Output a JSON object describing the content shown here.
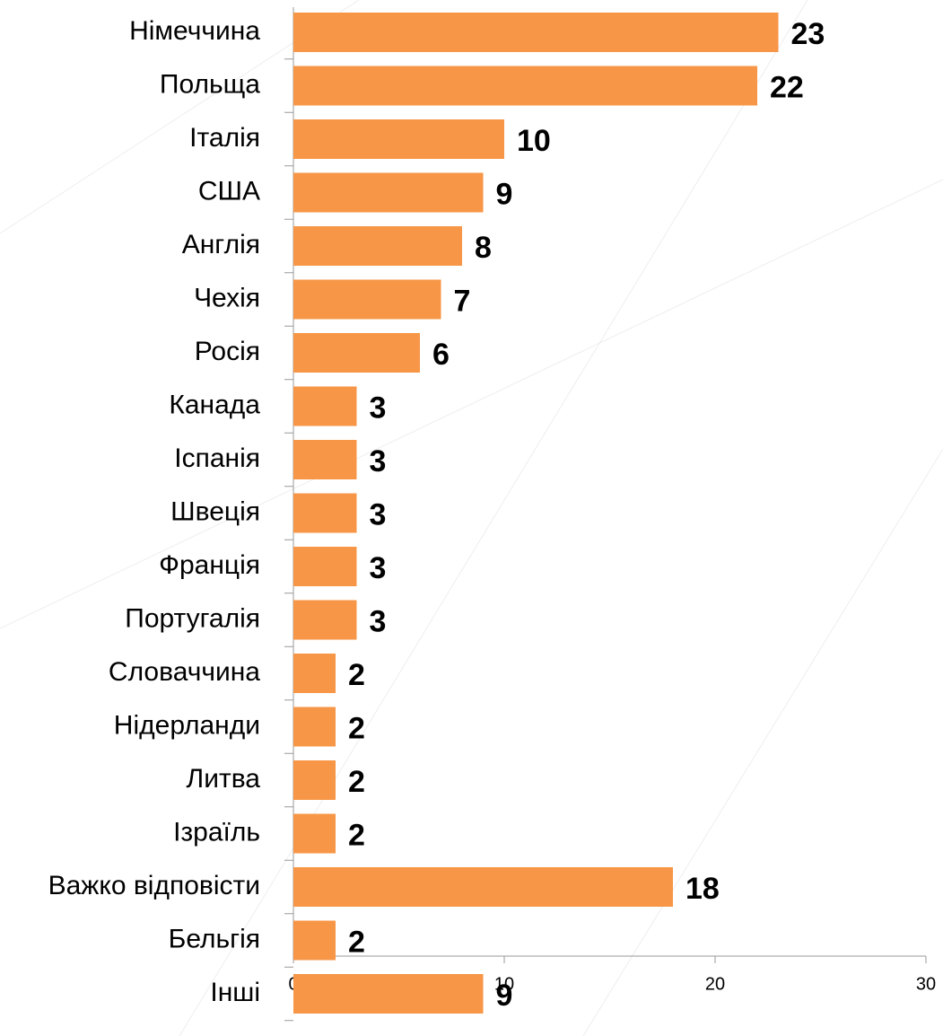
{
  "chart_data": {
    "type": "barh",
    "categories": [
      "Німеччина",
      "Польща",
      "Італія",
      "США",
      "Англія",
      "Чехія",
      "Росія",
      "Канада",
      "Іспанія",
      "Швеція",
      "Франція",
      "Португалія",
      "Словаччина",
      "Нідерланди",
      "Литва",
      "Ізраїль",
      "Важко відповісти",
      "Бельгія",
      "Інші"
    ],
    "values": [
      23,
      22,
      10,
      9,
      8,
      7,
      6,
      3,
      3,
      3,
      3,
      3,
      2,
      2,
      2,
      2,
      18,
      2,
      9
    ],
    "color": "#f79646",
    "xlim": [
      0,
      30
    ],
    "xticks": [
      0,
      10,
      20,
      30
    ]
  }
}
